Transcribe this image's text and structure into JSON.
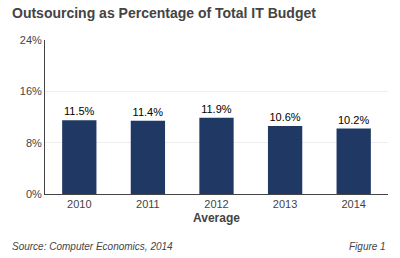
{
  "chart_data": {
    "type": "bar",
    "title": "Outsourcing as Percentage of Total IT Budget",
    "xlabel": "Average",
    "categories": [
      "2010",
      "2011",
      "2012",
      "2013",
      "2014"
    ],
    "values": [
      11.5,
      11.4,
      11.9,
      10.6,
      10.2
    ],
    "value_labels": [
      "11.5%",
      "11.4%",
      "11.9%",
      "10.6%",
      "10.2%"
    ],
    "data_labels": true,
    "color": "#1F3864",
    "ylim": [
      0,
      24
    ],
    "yticks": [
      {
        "value": 0,
        "label": "0%"
      },
      {
        "value": 8,
        "label": "8%"
      },
      {
        "value": 16,
        "label": "16%"
      },
      {
        "value": 24,
        "label": "24%"
      }
    ],
    "grid": true,
    "annotations": [
      "Source: Computer Economics, 2014",
      "Figure 1"
    ]
  }
}
